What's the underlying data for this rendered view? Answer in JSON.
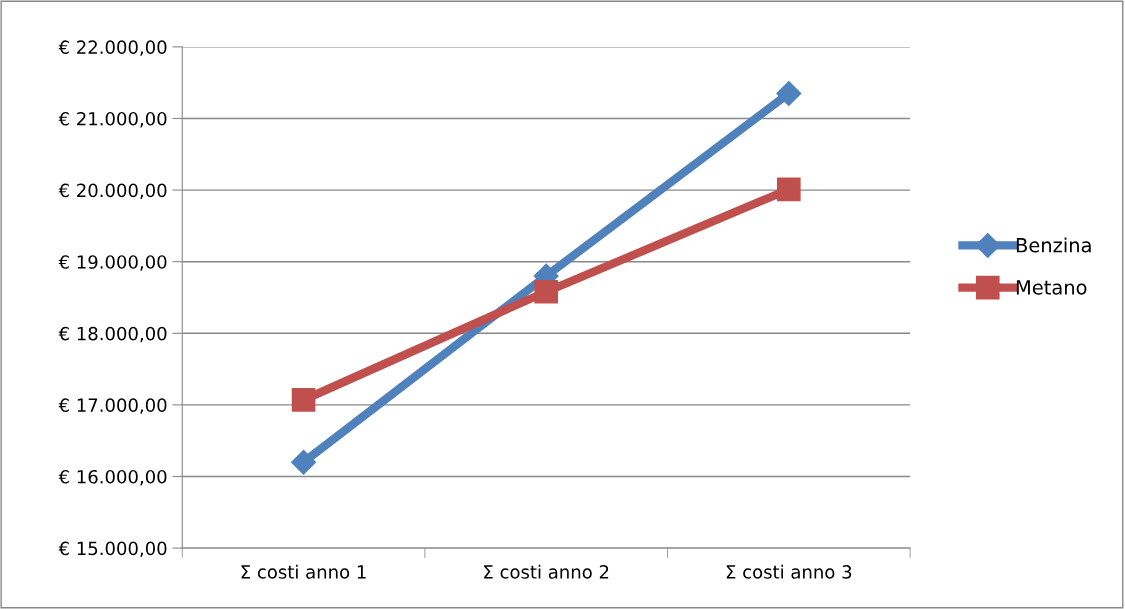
{
  "chart_data": {
    "type": "line",
    "categories": [
      "Σ costi anno 1",
      "Σ costi anno 2",
      "Σ costi anno 3"
    ],
    "series": [
      {
        "name": "Benzina",
        "color": "#4f81bd",
        "marker": "diamond",
        "values": [
          16200,
          18800,
          21350
        ]
      },
      {
        "name": "Metano",
        "color": "#c0504d",
        "marker": "square",
        "values": [
          17070,
          18580,
          20010
        ]
      }
    ],
    "ylim": [
      15000,
      22000
    ],
    "yticks": [
      {
        "value": 15000,
        "label": "€ 15.000,00"
      },
      {
        "value": 16000,
        "label": "€ 16.000,00"
      },
      {
        "value": 17000,
        "label": "€ 17.000,00"
      },
      {
        "value": 18000,
        "label": "€ 18.000,00"
      },
      {
        "value": 19000,
        "label": "€ 19.000,00"
      },
      {
        "value": 20000,
        "label": "€ 20.000,00"
      },
      {
        "value": 21000,
        "label": "€ 21.000,00"
      },
      {
        "value": 22000,
        "label": "€ 22.000,00"
      }
    ],
    "grid": "y",
    "legend": "right",
    "line_style": "solid"
  }
}
